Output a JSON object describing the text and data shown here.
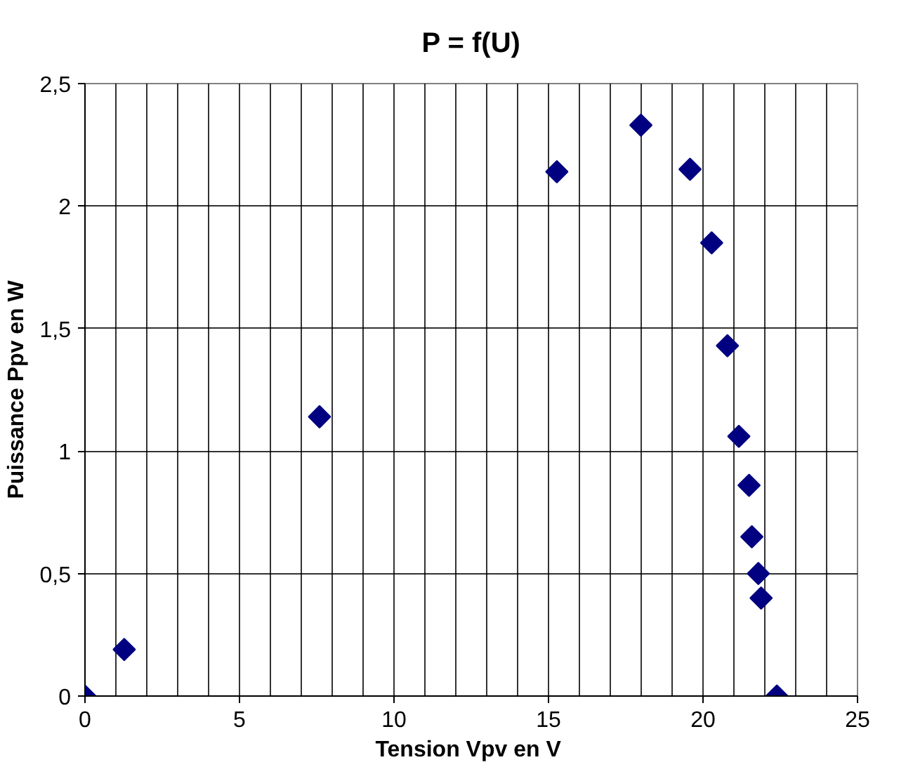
{
  "chart_data": {
    "type": "scatter",
    "title": "P = f(U)",
    "xlabel": "Tension Vpv en  V",
    "ylabel": "Puissance Ppv en W",
    "x": [
      0,
      1.27,
      7.59,
      15.27,
      17.99,
      19.58,
      20.28,
      20.79,
      21.16,
      21.49,
      21.58,
      21.79,
      21.88,
      22.39
    ],
    "series": [
      {
        "color": "#000080",
        "values": [
          0,
          0.19,
          1.14,
          2.14,
          2.33,
          2.15,
          1.85,
          1.43,
          1.06,
          0.86,
          0.65,
          0.5,
          0.4,
          0
        ]
      }
    ],
    "xlim": [
      0,
      25
    ],
    "ylim": [
      0,
      2.5
    ],
    "xticks": [
      0,
      5,
      10,
      15,
      20,
      25
    ],
    "yticks": [
      0,
      {
        "value": 0.5,
        "label": "0,5"
      },
      1,
      {
        "value": 1.5,
        "label": "1,5"
      },
      2,
      {
        "value": 2.5,
        "label": "2,5"
      }
    ],
    "grid": true,
    "marker": "diamond"
  }
}
